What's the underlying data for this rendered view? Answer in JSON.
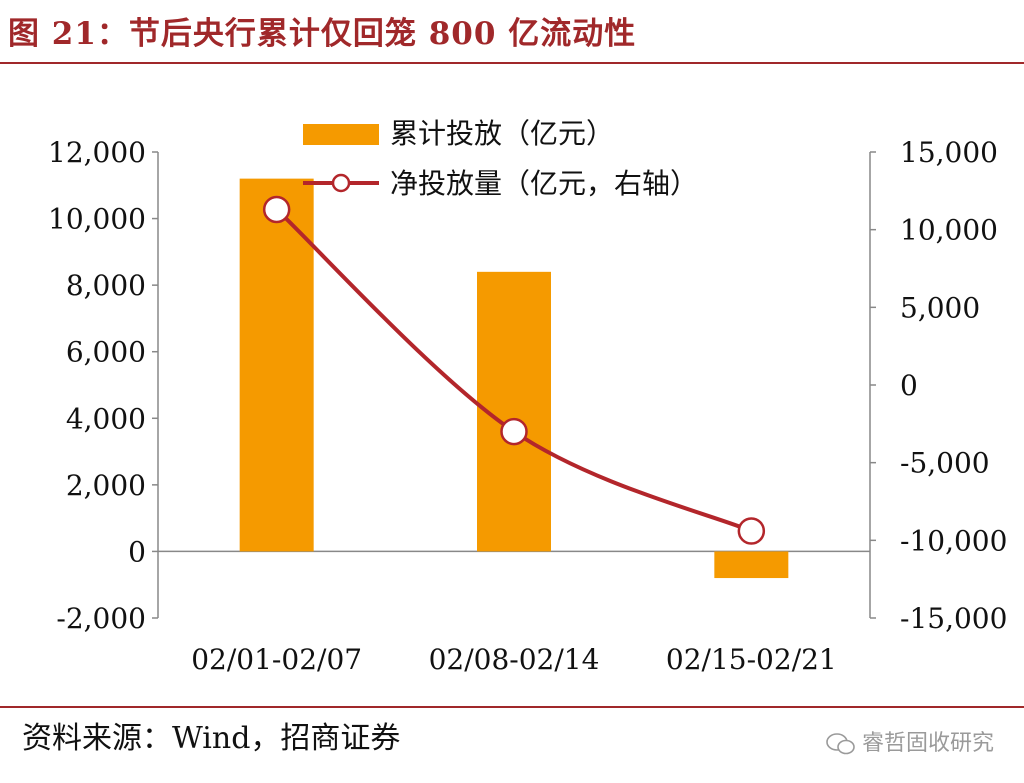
{
  "header": {
    "title": "图 21：节后央行累计仅回笼 800 亿流动性"
  },
  "footer": {
    "source": "资料来源：Wind，招商证券",
    "watermark": "睿哲固收研究"
  },
  "colors": {
    "bar": "#f59a00",
    "line": "#b3262b",
    "accent": "#a0282a",
    "axis": "#888888"
  },
  "chart_data": {
    "type": "bar",
    "categories": [
      "02/01-02/07",
      "02/08-02/14",
      "02/15-02/21"
    ],
    "series": [
      {
        "name": "累计投放（亿元）",
        "type": "bar",
        "axis": "left",
        "values": [
          11200,
          8400,
          -800
        ]
      },
      {
        "name": "净投放量（亿元，右轴）",
        "type": "line",
        "axis": "right",
        "values": [
          11300,
          -3000,
          -9400
        ]
      }
    ],
    "y_left": {
      "ylim": [
        -2000,
        12000
      ],
      "ticks": [
        12000,
        10000,
        8000,
        6000,
        4000,
        2000,
        0,
        -2000
      ],
      "tick_labels": [
        "12,000",
        "10,000",
        "8,000",
        "6,000",
        "4,000",
        "2,000",
        "0",
        "-2,000"
      ]
    },
    "y_right": {
      "ylim": [
        -15000,
        15000
      ],
      "ticks": [
        15000,
        10000,
        5000,
        0,
        -5000,
        -10000,
        -15000
      ],
      "tick_labels": [
        "15,000",
        "10,000",
        "5,000",
        "0",
        "-5,000",
        "-10,000",
        "-15,000"
      ]
    },
    "legend_position": "top-center",
    "grid": false
  }
}
